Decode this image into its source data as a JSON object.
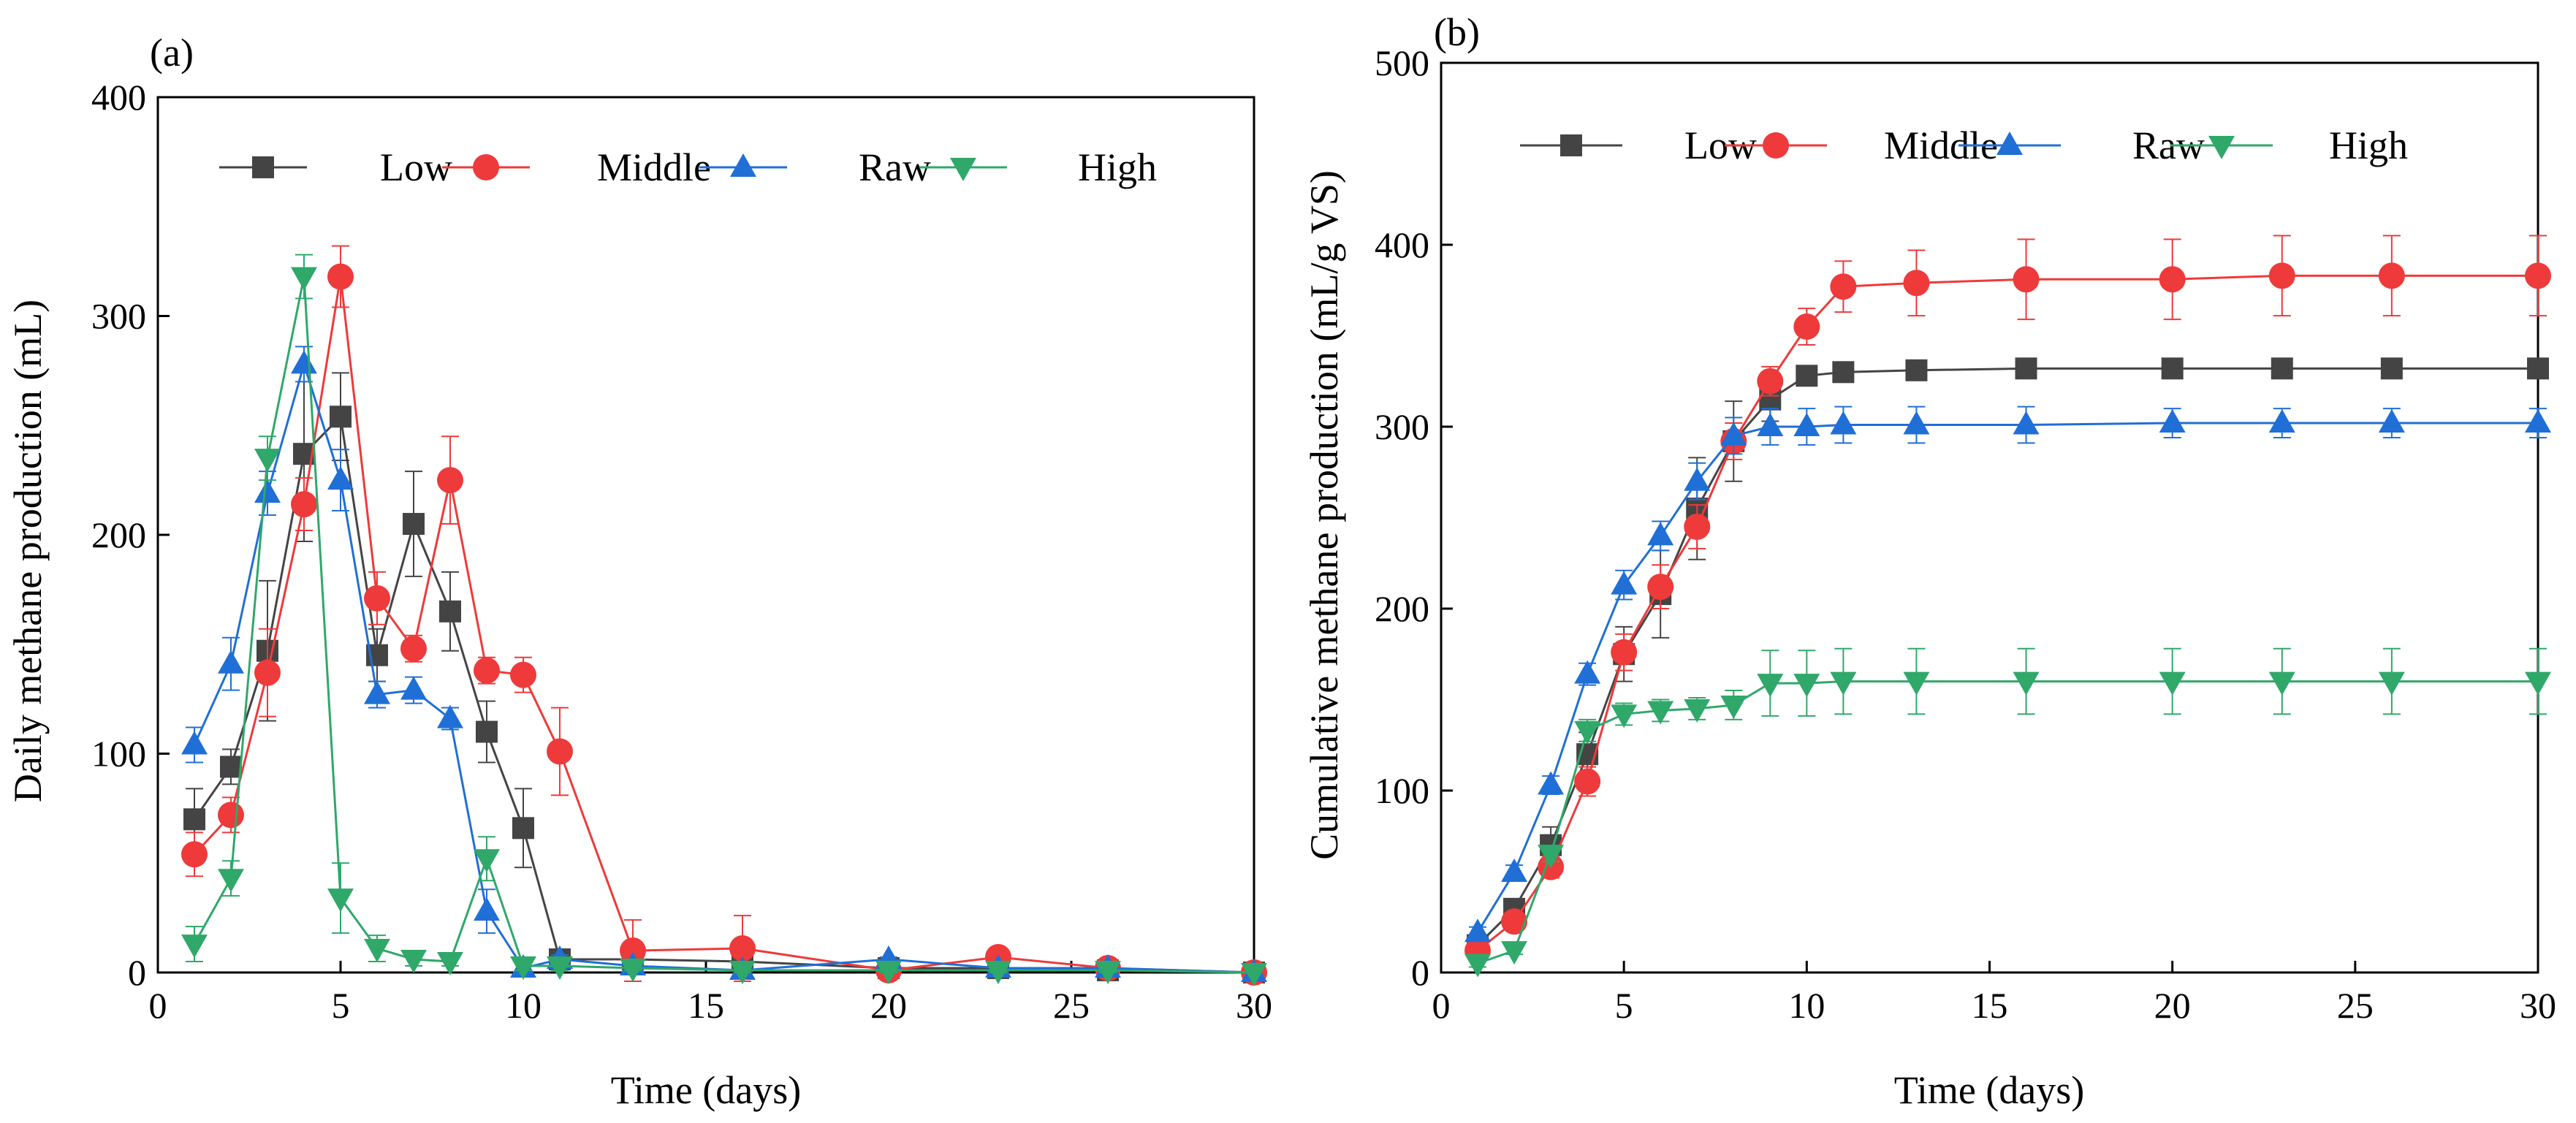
{
  "colors": {
    "Low": "#444444",
    "Middle": "#ee3a3a",
    "Raw": "#1f6fd6",
    "High": "#2fa86a"
  },
  "chart_data": [
    {
      "type": "line",
      "panel_label": "(a)",
      "xlabel": "Time (days)",
      "ylabel": "Daily methane production (mL)",
      "xlim": [
        0,
        30
      ],
      "ylim": [
        0,
        400
      ],
      "xticks": [
        0,
        5,
        10,
        15,
        20,
        25,
        30
      ],
      "yticks": [
        0,
        100,
        200,
        300,
        400
      ],
      "legend_position": "top",
      "series": [
        {
          "name": "Low",
          "marker": "square",
          "x": [
            1,
            2,
            3,
            4,
            5,
            6,
            7,
            8,
            9,
            10,
            11,
            13,
            16,
            20,
            23,
            26,
            30
          ],
          "y": [
            70,
            94,
            147,
            237,
            254,
            145,
            205,
            165,
            110,
            66,
            6,
            6,
            5,
            2,
            2,
            1,
            0
          ],
          "err": [
            14,
            8,
            32,
            40,
            20,
            12,
            24,
            18,
            14,
            18,
            4,
            2,
            2,
            1,
            1,
            1,
            0
          ]
        },
        {
          "name": "Middle",
          "marker": "circle",
          "x": [
            1,
            2,
            3,
            4,
            5,
            6,
            7,
            8,
            9,
            10,
            11,
            13,
            16,
            20,
            23,
            26,
            30
          ],
          "y": [
            54,
            72,
            137,
            214,
            318,
            171,
            148,
            225,
            138,
            136,
            101,
            10,
            11,
            1,
            7,
            2,
            0
          ],
          "err": [
            10,
            8,
            20,
            12,
            14,
            12,
            6,
            20,
            6,
            8,
            20,
            14,
            15,
            1,
            2,
            1,
            0
          ]
        },
        {
          "name": "Raw",
          "marker": "triangle-up",
          "x": [
            1,
            2,
            3,
            4,
            5,
            6,
            7,
            8,
            9,
            10,
            11,
            13,
            16,
            20,
            23,
            26,
            30
          ],
          "y": [
            104,
            141,
            219,
            278,
            225,
            127,
            129,
            116,
            28,
            2,
            6,
            3,
            1,
            6,
            2,
            2,
            0
          ],
          "err": [
            8,
            12,
            10,
            8,
            14,
            6,
            6,
            5,
            10,
            2,
            2,
            1,
            1,
            1,
            1,
            1,
            0
          ]
        },
        {
          "name": "High",
          "marker": "triangle-down",
          "x": [
            1,
            2,
            3,
            4,
            5,
            6,
            7,
            8,
            9,
            10,
            11,
            13,
            16,
            20,
            23,
            26,
            30
          ],
          "y": [
            13,
            43,
            235,
            318,
            34,
            11,
            6,
            5,
            52,
            3,
            3,
            2,
            1,
            1,
            1,
            1,
            0
          ],
          "err": [
            8,
            8,
            10,
            10,
            16,
            6,
            3,
            2,
            10,
            2,
            2,
            1,
            1,
            1,
            1,
            1,
            0
          ]
        }
      ]
    },
    {
      "type": "line",
      "panel_label": "(b)",
      "xlabel": "Time (days)",
      "ylabel": "Cumulative methane production (mL/g VS)",
      "xlim": [
        0,
        30
      ],
      "ylim": [
        0,
        500
      ],
      "xticks": [
        0,
        5,
        10,
        15,
        20,
        25,
        30
      ],
      "yticks": [
        0,
        100,
        200,
        300,
        400,
        500
      ],
      "legend_position": "top",
      "series": [
        {
          "name": "Low",
          "marker": "square",
          "x": [
            1,
            2,
            3,
            4,
            5,
            6,
            7,
            8,
            9,
            10,
            11,
            13,
            16,
            20,
            23,
            26,
            30
          ],
          "y": [
            15,
            35,
            70,
            120,
            175,
            208,
            255,
            292,
            315,
            328,
            330,
            331,
            332,
            332,
            332,
            332,
            332
          ],
          "err": [
            4,
            4,
            10,
            12,
            15,
            24,
            28,
            22,
            12,
            4,
            2,
            2,
            2,
            2,
            2,
            2,
            2
          ]
        },
        {
          "name": "Middle",
          "marker": "circle",
          "x": [
            1,
            2,
            3,
            4,
            5,
            6,
            7,
            8,
            9,
            10,
            11,
            13,
            16,
            20,
            23,
            26,
            30
          ],
          "y": [
            12,
            28,
            58,
            105,
            176,
            212,
            245,
            292,
            325,
            355,
            377,
            379,
            381,
            381,
            383,
            383,
            383
          ],
          "err": [
            4,
            4,
            6,
            8,
            10,
            12,
            12,
            10,
            8,
            10,
            14,
            18,
            22,
            22,
            22,
            22,
            22
          ]
        },
        {
          "name": "Raw",
          "marker": "triangle-up",
          "x": [
            1,
            2,
            3,
            4,
            5,
            6,
            7,
            8,
            9,
            10,
            11,
            13,
            16,
            20,
            23,
            26,
            30
          ],
          "y": [
            22,
            55,
            103,
            164,
            213,
            240,
            270,
            295,
            300,
            300,
            301,
            301,
            301,
            302,
            302,
            302,
            302
          ],
          "err": [
            3,
            4,
            5,
            6,
            8,
            8,
            10,
            10,
            10,
            10,
            10,
            10,
            10,
            8,
            8,
            8,
            8
          ]
        },
        {
          "name": "High",
          "marker": "triangle-down",
          "x": [
            1,
            2,
            3,
            4,
            5,
            6,
            7,
            8,
            9,
            10,
            11,
            13,
            16,
            20,
            23,
            26,
            30
          ],
          "y": [
            5,
            12,
            65,
            133,
            142,
            144,
            145,
            147,
            159,
            159,
            160,
            160,
            160,
            160,
            160,
            160,
            160
          ],
          "err": [
            2,
            2,
            4,
            6,
            6,
            6,
            6,
            8,
            18,
            18,
            18,
            18,
            18,
            18,
            18,
            18,
            18
          ]
        }
      ]
    }
  ]
}
